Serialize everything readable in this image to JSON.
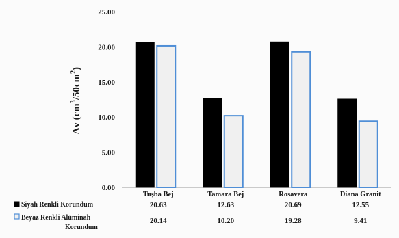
{
  "chart_data": {
    "type": "bar",
    "categories": [
      "Tuşba Bej",
      "Tamara Bej",
      "Rosavera",
      "Diana Granit"
    ],
    "series": [
      {
        "name": "Siyah Renkli Korundum",
        "values": [
          20.63,
          12.63,
          20.69,
          12.55
        ],
        "value_labels": [
          "20.63",
          "12.63",
          "20.69",
          "12.55"
        ],
        "fill": "#000000",
        "stroke": "#000000"
      },
      {
        "name": "Beyaz Renkli Alüminah Korundum",
        "name_lines": [
          "Beyaz Renkli Alüminah",
          "Korundum"
        ],
        "values": [
          20.14,
          10.2,
          19.28,
          9.41
        ],
        "value_labels": [
          "20.14",
          "10.20",
          "19.28",
          "9.41"
        ],
        "fill": "#f0f0f0",
        "stroke": "#4f8ed6"
      }
    ],
    "ylabel_main": "Δv (cm",
    "ylabel_sup1": "3",
    "ylabel_mid": "/50cm",
    "ylabel_sup2": "2",
    "ylabel_end": ")",
    "ylim": [
      0,
      25
    ],
    "yticks": [
      "0.00",
      "5.00",
      "10.00",
      "15.00",
      "20.00",
      "25.00"
    ],
    "ytick_values": [
      0,
      5,
      10,
      15,
      20,
      25
    ],
    "grid": false,
    "legend": "data-table"
  }
}
